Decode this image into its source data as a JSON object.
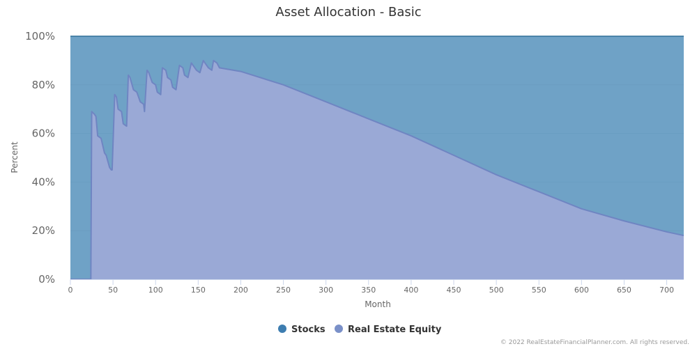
{
  "chart_data": {
    "type": "area",
    "stacking": "percent",
    "title": "Asset Allocation - Basic",
    "xlabel": "Month",
    "ylabel": "Percent",
    "xlim": [
      0,
      720
    ],
    "ylim": [
      0,
      100
    ],
    "x_ticks": [
      0,
      50,
      100,
      150,
      200,
      250,
      300,
      350,
      400,
      450,
      500,
      550,
      600,
      650,
      700
    ],
    "y_ticks": [
      0,
      20,
      40,
      60,
      80,
      100
    ],
    "y_tick_labels": [
      "0%",
      "20%",
      "40%",
      "60%",
      "80%",
      "100%"
    ],
    "grid": true,
    "legend_position": "bottom",
    "series": [
      {
        "name": "Stocks",
        "color": "#4b8bb8",
        "legend_color": "#3d7db0",
        "note_values": "top layer fills remainder up to 100%",
        "x": [
          0,
          720
        ],
        "values": [
          100,
          100
        ]
      },
      {
        "name": "Real Estate Equity",
        "color": "#9aa9d6",
        "legend_color": "#7a90c8",
        "x": [
          0,
          24,
          25,
          28,
          30,
          32,
          36,
          40,
          42,
          46,
          48,
          49,
          52,
          54,
          56,
          60,
          62,
          66,
          68,
          70,
          74,
          78,
          82,
          86,
          87,
          90,
          92,
          96,
          100,
          102,
          106,
          108,
          112,
          114,
          118,
          120,
          124,
          128,
          132,
          134,
          138,
          142,
          144,
          148,
          152,
          156,
          158,
          162,
          166,
          168,
          172,
          175,
          200,
          250,
          300,
          350,
          400,
          450,
          500,
          550,
          600,
          650,
          700,
          720
        ],
        "values": [
          0,
          0,
          69,
          68,
          67,
          59,
          58,
          52,
          51,
          46,
          45,
          45,
          76,
          75,
          70,
          69,
          64,
          63,
          84,
          83,
          78,
          77,
          73,
          72,
          69,
          86,
          85,
          81,
          80,
          77,
          76,
          87,
          86,
          83,
          82,
          79,
          78,
          88,
          87,
          84,
          83,
          89,
          88,
          86,
          85,
          90,
          89,
          87,
          86,
          90,
          89,
          87,
          85.5,
          80,
          73,
          66,
          59,
          51,
          43,
          36,
          29,
          24,
          19.5,
          18
        ]
      }
    ]
  },
  "credit": "© 2022 RealEstateFinancialPlanner.com. All rights reserved."
}
